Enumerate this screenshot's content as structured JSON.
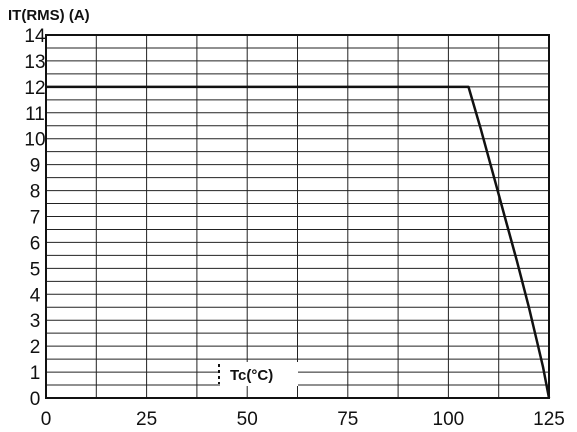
{
  "chart_data": {
    "type": "line",
    "ylabel": "IT(RMS) (A)",
    "xlabel": "Tc(°C)",
    "xlim": [
      0,
      125
    ],
    "ylim": [
      0,
      14
    ],
    "x_ticks": [
      0,
      25,
      50,
      75,
      100,
      125
    ],
    "x_tick_labels": [
      "0",
      "25",
      "50",
      "75",
      "100",
      "125"
    ],
    "y_ticks": [
      0,
      1,
      2,
      3,
      4,
      5,
      6,
      7,
      8,
      9,
      10,
      11,
      12,
      13,
      14
    ],
    "y_tick_labels": [
      "0",
      "1",
      "2",
      "3",
      "4",
      "5",
      "6",
      "7",
      "8",
      "9",
      "10",
      "11",
      "12",
      "13",
      "14"
    ],
    "grid": true,
    "series": [
      {
        "x": [
          0,
          105,
          108,
          111,
          114,
          117,
          120,
          122,
          123.5,
          125
        ],
        "y": [
          12,
          12,
          10.4,
          8.7,
          7.0,
          5.3,
          3.5,
          2.2,
          1.2,
          0
        ]
      }
    ]
  }
}
